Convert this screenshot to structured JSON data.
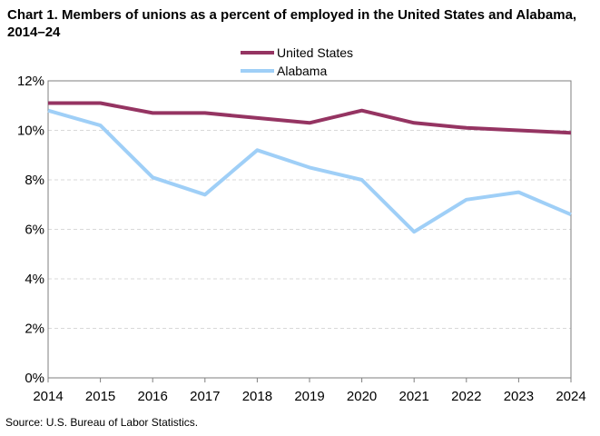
{
  "chart_data": {
    "type": "line",
    "title": "Chart 1. Members of unions as a percent of employed  in the United States and Alabama,  2014–24",
    "xlabel": "",
    "ylabel": "",
    "x": [
      "2014",
      "2015",
      "2016",
      "2017",
      "2018",
      "2019",
      "2020",
      "2021",
      "2022",
      "2023",
      "2024"
    ],
    "ylim": [
      0,
      12
    ],
    "yticks": [
      "0%",
      "2%",
      "4%",
      "6%",
      "8%",
      "10%",
      "12%"
    ],
    "grid": true,
    "legend_position": "top-center",
    "series": [
      {
        "name": "United States",
        "color": "#953462",
        "values": [
          11.1,
          11.1,
          10.7,
          10.7,
          10.5,
          10.3,
          10.8,
          10.3,
          10.1,
          10.0,
          9.9
        ]
      },
      {
        "name": "Alabama",
        "color": "#9fcff7",
        "values": [
          10.8,
          10.2,
          8.1,
          7.4,
          9.2,
          8.5,
          8.0,
          5.9,
          7.2,
          7.5,
          6.6
        ]
      }
    ],
    "source": "Source:  U.S. Bureau  of Labor Statistics."
  }
}
